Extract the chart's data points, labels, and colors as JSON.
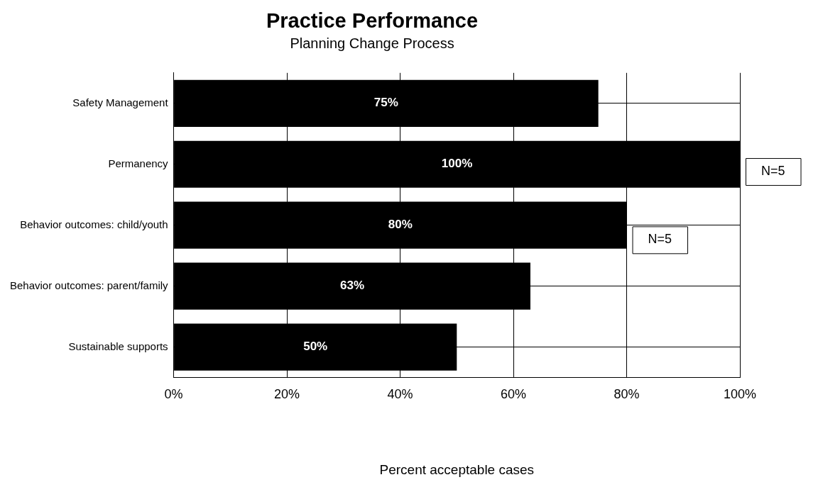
{
  "chart_data": {
    "type": "bar",
    "orientation": "horizontal",
    "title": "Practice Performance",
    "subtitle": "Planning Change Process",
    "xlabel": "Percent acceptable cases",
    "categories": [
      "Safety Management",
      "Permanency",
      "Behavior outcomes: child/youth",
      "Behavior outcomes: parent/family",
      "Sustainable supports"
    ],
    "values": [
      75,
      100,
      80,
      63,
      50
    ],
    "color": "#000000",
    "value_labels": [
      "75%",
      "100%",
      "80%",
      "63%",
      "50%"
    ],
    "xlim": [
      0,
      100
    ],
    "xticks": [
      {
        "value": 0,
        "label": "0%"
      },
      {
        "value": 20,
        "label": "20%"
      },
      {
        "value": 40,
        "label": "40%"
      },
      {
        "value": 60,
        "label": "60%"
      },
      {
        "value": 80,
        "label": "80%"
      },
      {
        "value": 100,
        "label": "100%"
      }
    ],
    "grid": true,
    "legend": false,
    "annotations": [
      {
        "text": "N=5",
        "x": 100,
        "y": "Permanency"
      },
      {
        "text": "N=5",
        "x": 80,
        "y": "Behavior outcomes: child/youth"
      }
    ]
  }
}
